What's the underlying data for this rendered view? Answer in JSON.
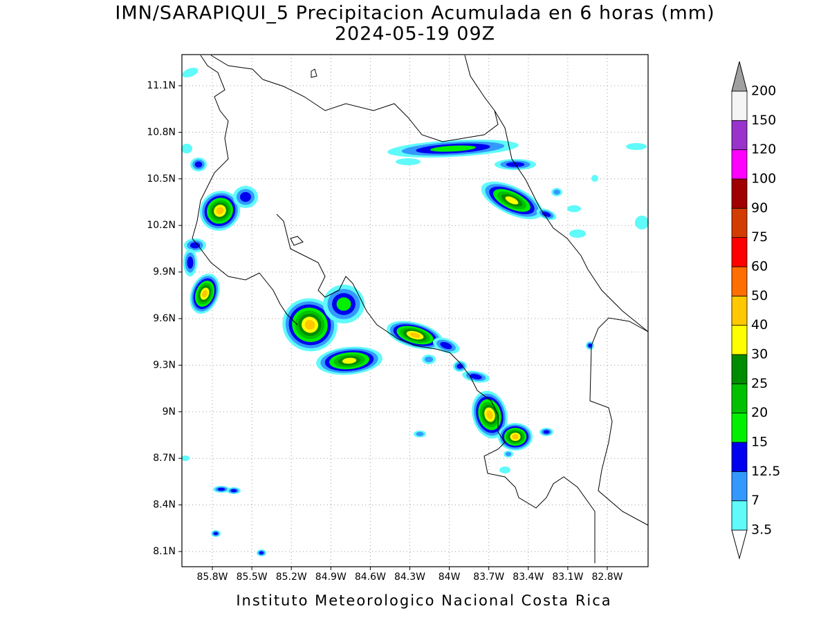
{
  "title": "IMN/SARAPIQUI_5 Precipitacion Acumulada en 6 horas (mm)",
  "subtitle": "2024-05-19 09Z",
  "map": {
    "lat_labels": [
      "11.1N",
      "10.8N",
      "10.5N",
      "10.2N",
      "9.9N",
      "9.6N",
      "9.3N",
      "9N",
      "8.7N",
      "8.4N",
      "8.1N"
    ],
    "lon_labels": [
      "85.8W",
      "85.5W",
      "85.2W",
      "84.9W",
      "84.6W",
      "84.3W",
      "84W",
      "83.7W",
      "83.4W",
      "83.1W",
      "82.8W"
    ]
  },
  "colorbar": {
    "levels": [
      3.5,
      7,
      12.5,
      15,
      20,
      25,
      30,
      40,
      50,
      60,
      75,
      90,
      100,
      120,
      150,
      200
    ],
    "band_colors": [
      "#5ffafa",
      "#3399ff",
      "#0000f0",
      "#00f000",
      "#00c000",
      "#008c00",
      "#ffff00",
      "#ffc800",
      "#ff6e00",
      "#ff0000",
      "#d23c00",
      "#a00000",
      "#ff00ff",
      "#9933cc",
      "#f5f5f5"
    ],
    "over_color": "#a0a0a0",
    "under_color": "#ffffff"
  },
  "footer": "Instituto Meteorologico Nacional Costa Rica"
}
